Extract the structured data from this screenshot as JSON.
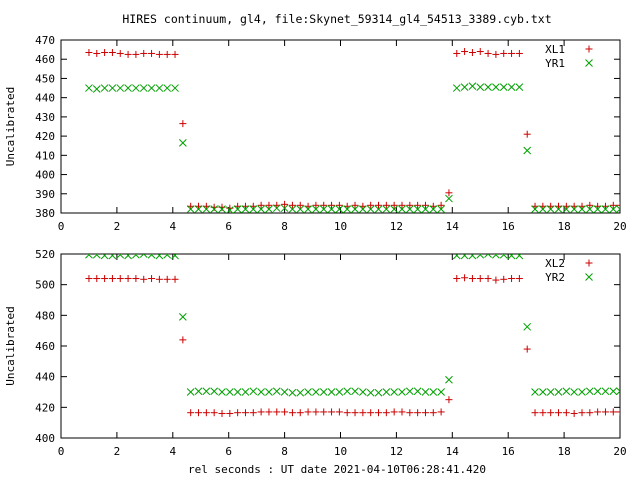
{
  "figure": {
    "title": "HIRES continuum, gl4, file:Skynet_59314_gl4_54513_3389.cyb.txt",
    "xlabel": "rel seconds : UT date 2021-04-10T06:28:41.420"
  },
  "colors": {
    "series1": "#cc0000",
    "series2": "#00a000",
    "frame": "#000000"
  },
  "chart_data": [
    {
      "type": "scatter",
      "title": "",
      "xlabel": "",
      "ylabel": "Uncalibrated",
      "xlim": [
        0,
        20
      ],
      "ylim": [
        380,
        470
      ],
      "xticks": [
        0,
        2,
        4,
        6,
        8,
        10,
        12,
        14,
        16,
        18,
        20
      ],
      "yticks": [
        380,
        390,
        400,
        410,
        420,
        430,
        440,
        450,
        460,
        470
      ],
      "grid": false,
      "legend": "top-right",
      "series": [
        {
          "name": "XL1",
          "marker": "plus",
          "x": [
            1.0,
            1.28,
            1.56,
            1.84,
            2.12,
            2.4,
            2.68,
            2.96,
            3.24,
            3.52,
            3.8,
            4.08,
            4.36,
            4.64,
            4.92,
            5.2,
            5.48,
            5.76,
            6.04,
            6.32,
            6.6,
            6.88,
            7.16,
            7.44,
            7.72,
            8.0,
            8.28,
            8.56,
            8.84,
            9.12,
            9.4,
            9.68,
            9.96,
            10.24,
            10.52,
            10.8,
            11.08,
            11.36,
            11.64,
            11.92,
            12.2,
            12.48,
            12.76,
            13.04,
            13.32,
            13.6,
            13.88,
            14.16,
            14.44,
            14.72,
            15.0,
            15.28,
            15.56,
            15.84,
            16.12,
            16.4,
            16.68,
            16.96,
            17.24,
            17.52,
            17.8,
            18.08,
            18.36,
            18.64,
            18.92,
            19.2,
            19.48,
            19.76,
            20.0
          ],
          "y": [
            463.5,
            463,
            463.5,
            463.5,
            463,
            462.5,
            462.5,
            463,
            463,
            462.5,
            462.5,
            462.5,
            426.5,
            383.5,
            383.5,
            383.5,
            383,
            383,
            382.5,
            383.5,
            383.5,
            383.5,
            384,
            384,
            384,
            384.5,
            384,
            384,
            383.5,
            384,
            384,
            384,
            384,
            383.5,
            384,
            383.5,
            384,
            384,
            384,
            384,
            384,
            384,
            384,
            384,
            383.5,
            384,
            390.5,
            463,
            464,
            463.5,
            464,
            463,
            462.5,
            463,
            463,
            463,
            421,
            383.5,
            383.5,
            383.5,
            383.5,
            383.5,
            383.5,
            383.5,
            384,
            383.5,
            383.5,
            384,
            384
          ]
        },
        {
          "name": "YR1",
          "marker": "cross",
          "x": [
            1.0,
            1.28,
            1.56,
            1.84,
            2.12,
            2.4,
            2.68,
            2.96,
            3.24,
            3.52,
            3.8,
            4.08,
            4.36,
            4.64,
            4.92,
            5.2,
            5.48,
            5.76,
            6.04,
            6.32,
            6.6,
            6.88,
            7.16,
            7.44,
            7.72,
            8.0,
            8.28,
            8.56,
            8.84,
            9.12,
            9.4,
            9.68,
            9.96,
            10.24,
            10.52,
            10.8,
            11.08,
            11.36,
            11.64,
            11.92,
            12.2,
            12.48,
            12.76,
            13.04,
            13.32,
            13.6,
            13.88,
            14.16,
            14.44,
            14.72,
            15.0,
            15.28,
            15.56,
            15.84,
            16.12,
            16.4,
            16.68,
            16.96,
            17.24,
            17.52,
            17.8,
            18.08,
            18.36,
            18.64,
            18.92,
            19.2,
            19.48,
            19.76,
            20.0
          ],
          "y": [
            445,
            444.5,
            445,
            445,
            445,
            445,
            445,
            445,
            445,
            445,
            445,
            445,
            416.5,
            382,
            382,
            382,
            382,
            382,
            381.5,
            382,
            382,
            382,
            382,
            382,
            382.5,
            382.5,
            382,
            382,
            382,
            382,
            382,
            382,
            382,
            382,
            382,
            382,
            382,
            382,
            382,
            382,
            382,
            382,
            382,
            382,
            382,
            382,
            387.5,
            445,
            445.5,
            446,
            445.5,
            445.5,
            445.5,
            445.5,
            445.5,
            445.5,
            412.5,
            382,
            382,
            382,
            382,
            382,
            382,
            382,
            382,
            382,
            382,
            382,
            382
          ]
        }
      ]
    },
    {
      "type": "scatter",
      "title": "",
      "xlabel": "rel seconds : UT date 2021-04-10T06:28:41.420",
      "ylabel": "Uncalibrated",
      "xlim": [
        0,
        20
      ],
      "ylim": [
        400,
        520
      ],
      "xticks": [
        0,
        2,
        4,
        6,
        8,
        10,
        12,
        14,
        16,
        18,
        20
      ],
      "yticks": [
        400,
        420,
        440,
        460,
        480,
        500,
        520
      ],
      "grid": false,
      "legend": "top-right",
      "series": [
        {
          "name": "XL2",
          "marker": "plus",
          "x": [
            1.0,
            1.28,
            1.56,
            1.84,
            2.12,
            2.4,
            2.68,
            2.96,
            3.24,
            3.52,
            3.8,
            4.08,
            4.36,
            4.64,
            4.92,
            5.2,
            5.48,
            5.76,
            6.04,
            6.32,
            6.6,
            6.88,
            7.16,
            7.44,
            7.72,
            8.0,
            8.28,
            8.56,
            8.84,
            9.12,
            9.4,
            9.68,
            9.96,
            10.24,
            10.52,
            10.8,
            11.08,
            11.36,
            11.64,
            11.92,
            12.2,
            12.48,
            12.76,
            13.04,
            13.32,
            13.6,
            13.88,
            14.16,
            14.44,
            14.72,
            15.0,
            15.28,
            15.56,
            15.84,
            16.12,
            16.4,
            16.68,
            16.96,
            17.24,
            17.52,
            17.8,
            18.08,
            18.36,
            18.64,
            18.92,
            19.2,
            19.48,
            19.76,
            20.0
          ],
          "y": [
            504,
            504,
            504,
            504,
            504,
            504,
            504,
            503.5,
            504,
            503.5,
            503.5,
            503.5,
            464,
            416.5,
            416.5,
            416.5,
            416.5,
            416,
            416,
            416.5,
            416.5,
            416.5,
            417,
            417,
            417,
            417,
            416.5,
            416.5,
            417,
            417,
            417,
            417,
            417,
            416.5,
            416.5,
            416.5,
            416.5,
            416.5,
            416.5,
            417,
            417,
            416.5,
            416.5,
            416.5,
            416.5,
            417,
            425,
            504,
            504.5,
            504,
            504,
            504,
            503,
            503.5,
            504,
            504,
            458,
            416.5,
            416.5,
            416.5,
            416.5,
            416.5,
            416,
            416.5,
            416.5,
            417,
            417,
            417,
            417
          ]
        },
        {
          "name": "YR2",
          "marker": "cross",
          "x": [
            1.0,
            1.28,
            1.56,
            1.84,
            2.12,
            2.4,
            2.68,
            2.96,
            3.24,
            3.52,
            3.8,
            4.08,
            4.36,
            4.64,
            4.92,
            5.2,
            5.48,
            5.76,
            6.04,
            6.32,
            6.6,
            6.88,
            7.16,
            7.44,
            7.72,
            8.0,
            8.28,
            8.56,
            8.84,
            9.12,
            9.4,
            9.68,
            9.96,
            10.24,
            10.52,
            10.8,
            11.08,
            11.36,
            11.64,
            11.92,
            12.2,
            12.48,
            12.76,
            13.04,
            13.32,
            13.6,
            13.88,
            14.16,
            14.44,
            14.72,
            15.0,
            15.28,
            15.56,
            15.84,
            16.12,
            16.4,
            16.68,
            16.96,
            17.24,
            17.52,
            17.8,
            18.08,
            18.36,
            18.64,
            18.92,
            19.2,
            19.48,
            19.76,
            20.0
          ],
          "y": [
            519.5,
            519.5,
            519,
            519,
            519.5,
            519,
            519.5,
            520,
            519.5,
            519,
            519.5,
            519,
            479,
            430,
            430.5,
            430.5,
            430.5,
            430,
            430,
            430,
            430,
            430.5,
            430,
            430,
            430.5,
            430,
            429.5,
            429.5,
            430,
            430,
            430,
            430,
            430,
            430.5,
            430.5,
            430,
            429.5,
            429.5,
            430,
            430,
            430,
            430.5,
            430.5,
            430,
            430,
            430,
            438,
            519,
            519,
            519,
            519.5,
            520,
            519.5,
            519.5,
            519,
            519,
            472.5,
            430,
            430,
            430,
            430,
            430.5,
            430,
            430,
            430.5,
            430.5,
            430.5,
            430.5,
            430.5
          ]
        }
      ]
    }
  ]
}
